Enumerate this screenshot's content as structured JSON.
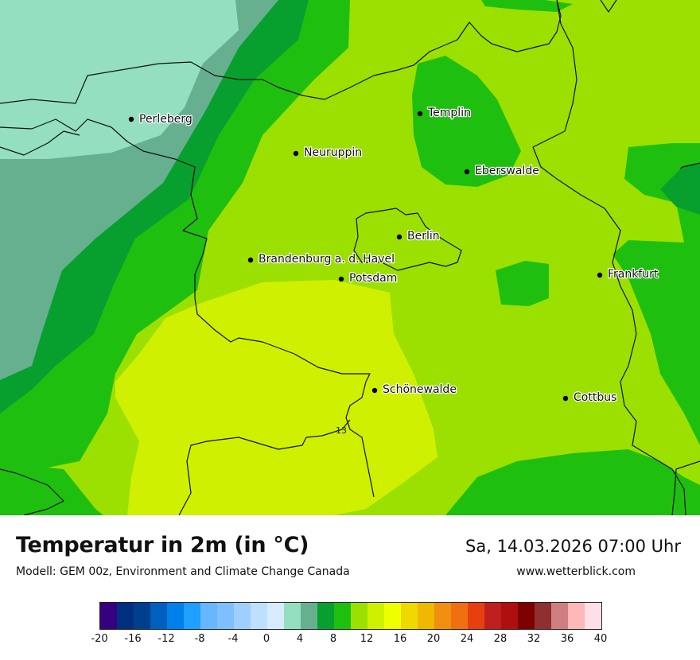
{
  "map": {
    "cities": [
      {
        "name": "Perleberg"
      },
      {
        "name": "Neuruppin"
      },
      {
        "name": "Templin"
      },
      {
        "name": "Eberswalde"
      },
      {
        "name": "Berlin"
      },
      {
        "name": "Brandenburg a. d. Havel"
      },
      {
        "name": "Potsdam"
      },
      {
        "name": "Frankfurt"
      },
      {
        "name": "Schönewalde"
      },
      {
        "name": "Cottbus"
      }
    ],
    "road_label": "13"
  },
  "footer": {
    "title": "Temperatur in 2m (in °C)",
    "model": "Modell: GEM 00z, Environment and Climate Change Canada",
    "datetime": "Sa, 14.03.2026 07:00 Uhr",
    "website": "www.wetterblick.com"
  },
  "legend": {
    "colors": [
      "#37007f",
      "#002f7f",
      "#003f8f",
      "#005fbf",
      "#0080ea",
      "#1f9fff",
      "#67b7ff",
      "#7fbfff",
      "#9fcfff",
      "#bfdfff",
      "#d7ebff",
      "#93dfbf",
      "#67b08f",
      "#07a02f",
      "#1fbf0f",
      "#9be000",
      "#cff000",
      "#f0ff00",
      "#f0d800",
      "#f0b800",
      "#f08f10",
      "#f06f10",
      "#e83f10",
      "#bf1f1f",
      "#af0f0f",
      "#7f0000",
      "#8f2f2f",
      "#cf7f7f",
      "#ffb7b7",
      "#ffdfe7"
    ],
    "ticks": [
      "-20",
      "-16",
      "-12",
      "-8",
      "-4",
      "0",
      "4",
      "8",
      "12",
      "16",
      "20",
      "24",
      "28",
      "32",
      "36",
      "40"
    ]
  }
}
